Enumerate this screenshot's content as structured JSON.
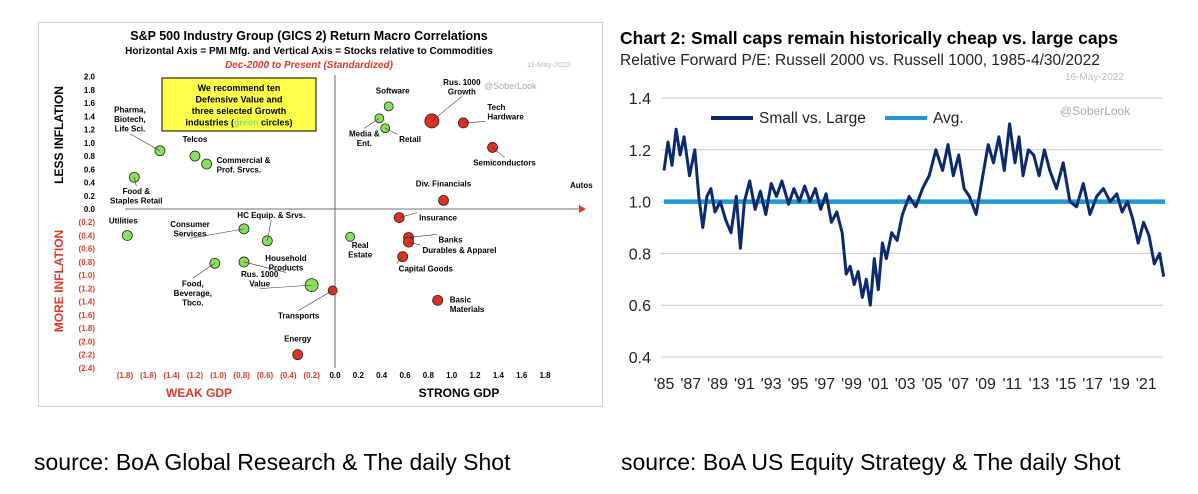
{
  "captions": {
    "left": "source: BoA Global Research & The daily Shot",
    "right": "source: BoA US Equity Strategy & The daily Shot"
  },
  "chart_data": [
    {
      "type": "scatter",
      "title": "S&P 500 Industry Group (GICS 2) Return Macro Correlations",
      "subtitle": "Horizontal Axis = PMI Mfg. and Vertical Axis = Stocks relative to Commodities",
      "period": "Dec-2000 to Present (Standardized)",
      "watermark_date": "11-May-2022",
      "watermark": "@SoberLook",
      "callout": [
        "We recommend ten",
        "Defensive Value and",
        "three selected Growth",
        "industries (green circles)"
      ],
      "callout_highlight": "green",
      "xlim": [
        -1.8,
        1.8
      ],
      "ylim": [
        -2.4,
        2.0
      ],
      "x_ticks": [
        "(1.8)",
        "(1.6)",
        "(1.4)",
        "(1.2)",
        "(1.0)",
        "(0.8)",
        "(0.6)",
        "(0.4)",
        "(0.2)",
        "0.0",
        "0.2",
        "0.4",
        "0.6",
        "0.8",
        "1.0",
        "1.2",
        "1.4",
        "1.6",
        "1.8"
      ],
      "y_ticks_pos": [
        "2.0",
        "1.8",
        "1.6",
        "1.4",
        "1.2",
        "1.0",
        "0.8",
        "0.6",
        "0.4",
        "0.2",
        "0.0"
      ],
      "y_ticks_neg": [
        "(0.2)",
        "(0.4)",
        "(0.6)",
        "(0.8)",
        "(1.0)",
        "(1.2)",
        "(1.4)",
        "(1.6)",
        "(1.8)",
        "(2.0)",
        "(2.2)",
        "(2.4)"
      ],
      "xlabel_left": "WEAK GDP",
      "xlabel_right": "STRONG GDP",
      "ylabel_top": "LESS INFLATION",
      "ylabel_bottom": "MORE INFLATION",
      "axis_arrow_label": "Autos",
      "colors": {
        "green": "#8be05a",
        "red": "#e0321f",
        "accent": "#e03a2a",
        "callout_bg": "#ffff4a"
      },
      "points": [
        {
          "label": "Pharma,\nBiotech,\nLife Sci.",
          "x": -1.5,
          "y": 0.88,
          "size": 5,
          "color": "green"
        },
        {
          "label": "Telcos",
          "x": -1.2,
          "y": 0.8,
          "size": 5,
          "color": "green"
        },
        {
          "label": "Commercial &\nProf. Srvcs.",
          "x": -1.1,
          "y": 0.68,
          "size": 5,
          "color": "green"
        },
        {
          "label": "Food &\nStaples Retail",
          "x": -1.72,
          "y": 0.48,
          "size": 5,
          "color": "green"
        },
        {
          "label": "Software",
          "x": 0.46,
          "y": 1.55,
          "size": 4.5,
          "color": "green"
        },
        {
          "label": "Media &\nEnt.",
          "x": 0.38,
          "y": 1.37,
          "size": 4.5,
          "color": "green"
        },
        {
          "label": "Retail",
          "x": 0.43,
          "y": 1.22,
          "size": 4.5,
          "color": "green"
        },
        {
          "label": "Rus. 1000\nGrowth",
          "x": 0.83,
          "y": 1.33,
          "size": 7,
          "color": "red"
        },
        {
          "label": "Tech\nHardware",
          "x": 1.1,
          "y": 1.3,
          "size": 5,
          "color": "red"
        },
        {
          "label": "Semiconductors",
          "x": 1.35,
          "y": 0.93,
          "size": 5,
          "color": "red"
        },
        {
          "label": "Div. Financials",
          "x": 0.93,
          "y": 0.13,
          "size": 5,
          "color": "red"
        },
        {
          "label": "Utilities",
          "x": -1.78,
          "y": -0.4,
          "size": 5,
          "color": "green"
        },
        {
          "label": "Consumer\nServices",
          "x": -0.78,
          "y": -0.3,
          "size": 5,
          "color": "green"
        },
        {
          "label": "HC Equip. & Srvs.",
          "x": -0.58,
          "y": -0.48,
          "size": 5,
          "color": "green"
        },
        {
          "label": "Household\nProducts",
          "x": -0.78,
          "y": -0.8,
          "size": 5,
          "color": "green"
        },
        {
          "label": "Food,\nBeverage,\nTbco.",
          "x": -1.03,
          "y": -0.82,
          "size": 5,
          "color": "green"
        },
        {
          "label": "Rus. 1000\nValue",
          "x": -0.2,
          "y": -1.15,
          "size": 6.5,
          "color": "green"
        },
        {
          "label": "Transports",
          "x": -0.02,
          "y": -1.23,
          "size": 4.5,
          "color": "red"
        },
        {
          "label": "Energy",
          "x": -0.32,
          "y": -2.2,
          "size": 5,
          "color": "red"
        },
        {
          "label": "Real\nEstate",
          "x": 0.13,
          "y": -0.42,
          "size": 4.5,
          "color": "green"
        },
        {
          "label": "Insurance",
          "x": 0.55,
          "y": -0.13,
          "size": 5,
          "color": "red"
        },
        {
          "label": "Banks",
          "x": 0.63,
          "y": -0.43,
          "size": 5,
          "color": "red"
        },
        {
          "label": "Durables & Apparel",
          "x": 0.63,
          "y": -0.5,
          "size": 5,
          "color": "red"
        },
        {
          "label": "Capital Goods",
          "x": 0.58,
          "y": -0.72,
          "size": 5,
          "color": "red"
        },
        {
          "label": "Basic\nMaterials",
          "x": 0.88,
          "y": -1.38,
          "size": 5,
          "color": "red"
        }
      ]
    },
    {
      "type": "line",
      "title": "Chart 2: Small caps remain historically cheap vs. large caps",
      "subtitle": "Relative Forward P/E: Russell 2000 vs. Russell 1000, 1985-4/30/2022",
      "watermark_date": "16-May-2022",
      "watermark": "@SoberLook",
      "ylim": [
        0.4,
        1.4
      ],
      "y_ticks": [
        "1.4",
        "1.2",
        "1.0",
        "0.8",
        "0.6",
        "0.4"
      ],
      "x_ticks": [
        "'85",
        "'87",
        "'89",
        "'91",
        "'93",
        "'95",
        "'97",
        "'99",
        "'01",
        "'03",
        "'05",
        "'07",
        "'09",
        "'11",
        "'13",
        "'15",
        "'17",
        "'19",
        "'21"
      ],
      "xlim": [
        1985,
        2022.4
      ],
      "avg": 1.0,
      "colors": {
        "series": "#0b2a6e",
        "avg": "#1f9ad6"
      },
      "series": [
        {
          "name": "Small vs. Large",
          "x": [
            1985,
            1985.3,
            1985.6,
            1985.9,
            1986.2,
            1986.5,
            1986.9,
            1987.3,
            1987.6,
            1987.9,
            1988.2,
            1988.5,
            1988.8,
            1989.2,
            1989.6,
            1990,
            1990.4,
            1990.7,
            1991,
            1991.4,
            1991.8,
            1992.2,
            1992.6,
            1993,
            1993.4,
            1993.8,
            1994.3,
            1994.7,
            1995.1,
            1995.5,
            1995.9,
            1996.3,
            1996.7,
            1997.1,
            1997.5,
            1997.9,
            1998.3,
            1998.6,
            1998.9,
            1999.2,
            1999.5,
            1999.8,
            2000.1,
            2000.4,
            2000.7,
            2001,
            2001.3,
            2001.6,
            2002,
            2002.4,
            2002.8,
            2003.3,
            2003.8,
            2004.3,
            2004.8,
            2005.3,
            2005.8,
            2006.2,
            2006.6,
            2007,
            2007.4,
            2007.8,
            2008.3,
            2008.8,
            2009.2,
            2009.6,
            2010,
            2010.4,
            2010.8,
            2011.2,
            2011.5,
            2011.8,
            2012.2,
            2012.6,
            2013,
            2013.4,
            2013.8,
            2014.3,
            2014.8,
            2015.3,
            2015.8,
            2016.3,
            2016.8,
            2017.3,
            2017.8,
            2018.3,
            2018.8,
            2019.2,
            2019.6,
            2020,
            2020.4,
            2020.8,
            2021.2,
            2021.6,
            2022,
            2022.3
          ],
          "values": [
            1.12,
            1.23,
            1.14,
            1.28,
            1.18,
            1.25,
            1.1,
            1.2,
            1.02,
            0.9,
            1.02,
            1.05,
            0.96,
            1.0,
            0.93,
            0.88,
            1.02,
            0.82,
            1.0,
            1.08,
            0.97,
            1.04,
            0.95,
            1.07,
            1.02,
            1.08,
            0.99,
            1.05,
            1.0,
            1.06,
            1.0,
            1.05,
            0.97,
            1.03,
            0.92,
            0.96,
            0.88,
            0.72,
            0.75,
            0.68,
            0.73,
            0.63,
            0.7,
            0.6,
            0.78,
            0.66,
            0.84,
            0.78,
            0.88,
            0.85,
            0.95,
            1.02,
            0.98,
            1.05,
            1.1,
            1.2,
            1.12,
            1.22,
            1.1,
            1.18,
            1.05,
            1.02,
            0.95,
            1.1,
            1.22,
            1.15,
            1.25,
            1.12,
            1.3,
            1.15,
            1.25,
            1.1,
            1.2,
            1.18,
            1.1,
            1.2,
            1.12,
            1.05,
            1.15,
            1.0,
            0.98,
            1.07,
            0.95,
            1.02,
            1.05,
            1.0,
            1.03,
            0.96,
            1.0,
            0.93,
            0.84,
            0.92,
            0.87,
            0.76,
            0.8,
            0.71
          ]
        },
        {
          "name": "Avg.",
          "values": [
            1.0
          ]
        }
      ]
    }
  ]
}
